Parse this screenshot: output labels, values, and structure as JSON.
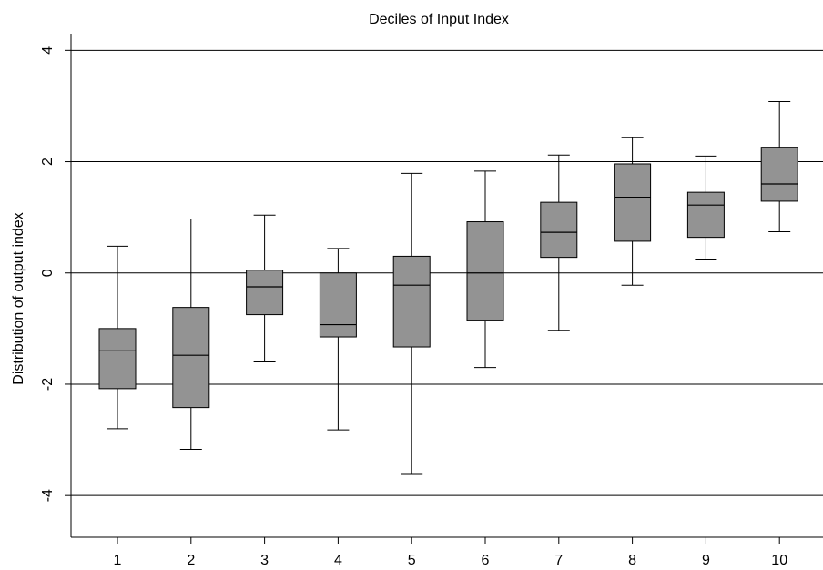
{
  "chart_data": {
    "type": "boxplot",
    "title": "Deciles of Input Index",
    "xlabel": "",
    "ylabel": "Distribution of output index",
    "ylim": [
      -4.75,
      4.3
    ],
    "yticks": [
      -4,
      -2,
      0,
      2,
      4
    ],
    "grid": "horizontal",
    "colors": {
      "box_fill": "#939393",
      "line": "#000000"
    },
    "categories": [
      "1",
      "2",
      "3",
      "4",
      "5",
      "6",
      "7",
      "8",
      "9",
      "10"
    ],
    "series": [
      {
        "boxes": [
          {
            "whisker_low": -2.8,
            "q1": -2.08,
            "median": -1.4,
            "q3": -1.0,
            "whisker_high": 0.48
          },
          {
            "whisker_low": -3.17,
            "q1": -2.42,
            "median": -1.48,
            "q3": -0.62,
            "whisker_high": 0.97
          },
          {
            "whisker_low": -1.6,
            "q1": -0.75,
            "median": -0.25,
            "q3": 0.05,
            "whisker_high": 1.04
          },
          {
            "whisker_low": -2.82,
            "q1": -1.15,
            "median": -0.93,
            "q3": 0.0,
            "whisker_high": 0.44
          },
          {
            "whisker_low": -3.62,
            "q1": -1.33,
            "median": -0.22,
            "q3": 0.3,
            "whisker_high": 1.79
          },
          {
            "whisker_low": -1.7,
            "q1": -0.85,
            "median": 0.0,
            "q3": 0.92,
            "whisker_high": 1.83
          },
          {
            "whisker_low": -1.03,
            "q1": 0.28,
            "median": 0.73,
            "q3": 1.27,
            "whisker_high": 2.12
          },
          {
            "whisker_low": -0.22,
            "q1": 0.57,
            "median": 1.36,
            "q3": 1.96,
            "whisker_high": 2.43
          },
          {
            "whisker_low": 0.25,
            "q1": 0.64,
            "median": 1.22,
            "q3": 1.45,
            "whisker_high": 2.1
          },
          {
            "whisker_low": 0.74,
            "q1": 1.29,
            "median": 1.6,
            "q3": 2.26,
            "whisker_high": 3.08
          }
        ]
      }
    ]
  }
}
